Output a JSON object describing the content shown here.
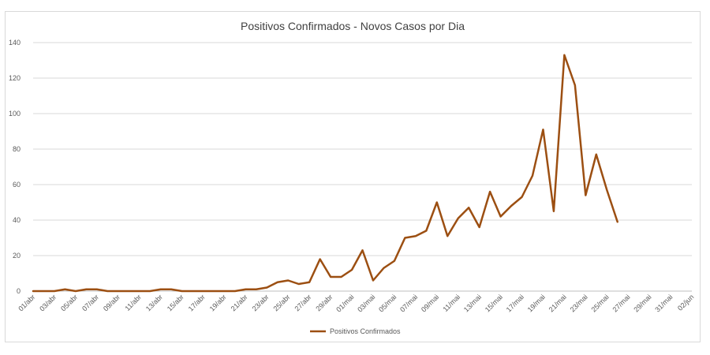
{
  "chart_data": {
    "type": "line",
    "title": "Positivos Confirmados - Novos Casos por Dia",
    "xlabel": "",
    "ylabel": "",
    "ylim": [
      0,
      140
    ],
    "yticks": [
      0,
      20,
      40,
      60,
      80,
      100,
      120,
      140
    ],
    "grid": true,
    "legend_position": "bottom",
    "x_tick_labels": [
      "01/abr",
      "03/abr",
      "05/abr",
      "07/abr",
      "09/abr",
      "11/abr",
      "13/abr",
      "15/abr",
      "17/abr",
      "19/abr",
      "21/abr",
      "23/abr",
      "25/abr",
      "27/abr",
      "29/abr",
      "01/mai",
      "03/mai",
      "05/mai",
      "07/mai",
      "09/mai",
      "11/mai",
      "13/mai",
      "15/mai",
      "17/mai",
      "19/mai",
      "21/mai",
      "23/mai",
      "25/mai",
      "27/mai",
      "29/mai",
      "31/mai",
      "02/jun"
    ],
    "x_count": 63,
    "series": [
      {
        "name": "Positivos Confirmados",
        "color": "#9C4F12",
        "values": [
          0,
          0,
          0,
          1,
          0,
          1,
          1,
          0,
          0,
          0,
          0,
          0,
          1,
          1,
          0,
          0,
          0,
          0,
          0,
          0,
          1,
          1,
          2,
          5,
          6,
          4,
          5,
          18,
          8,
          8,
          12,
          23,
          6,
          13,
          17,
          30,
          31,
          34,
          50,
          31,
          41,
          47,
          36,
          56,
          42,
          48,
          53,
          65,
          91,
          45,
          133,
          116,
          54,
          77,
          57,
          39
        ]
      }
    ]
  }
}
